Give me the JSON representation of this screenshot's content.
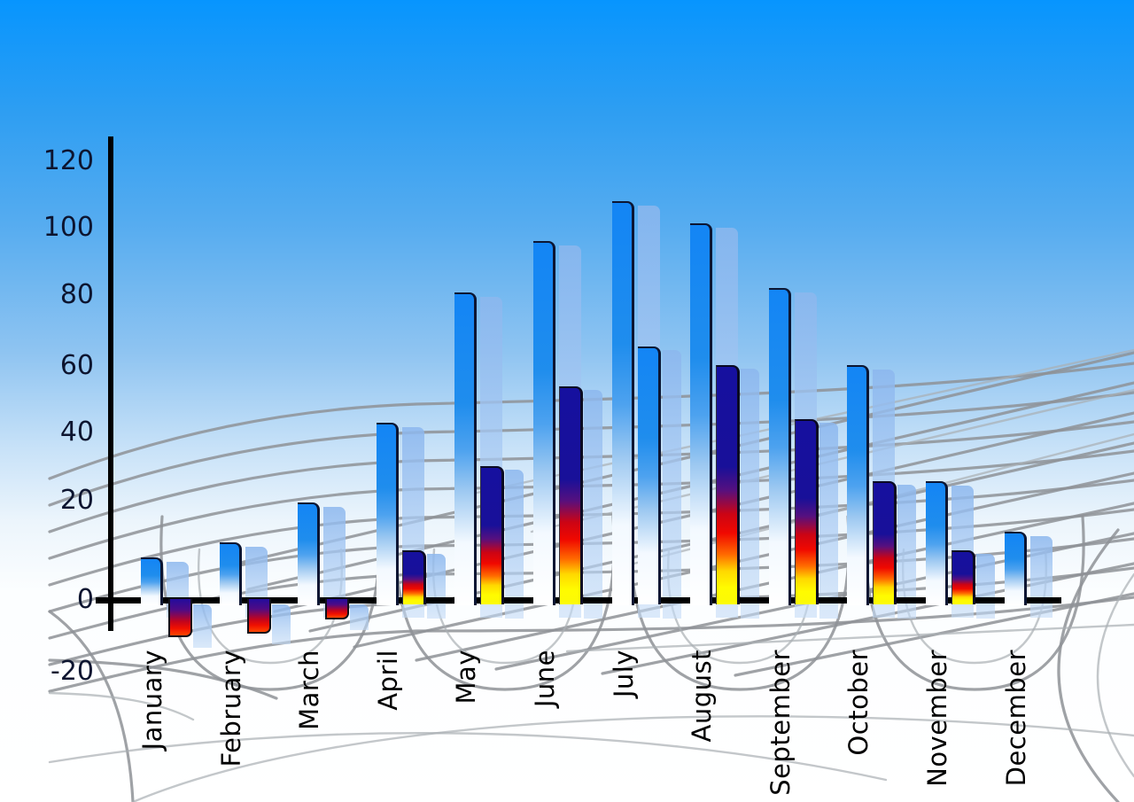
{
  "y_axis": {
    "tick_labels": [
      "120",
      "100",
      "80",
      "60",
      "40",
      "20",
      "0",
      "-20"
    ]
  },
  "chart_data": {
    "type": "bar",
    "title": "",
    "xlabel": "",
    "ylabel": "",
    "categories": [
      "January",
      "February",
      "March",
      "April",
      "May",
      "June",
      "July",
      "August",
      "September",
      "October",
      "November",
      "December"
    ],
    "series": [
      {
        "name": "primary-blue-bars",
        "values": [
          12,
          16,
          27,
          49,
          85,
          99,
          110,
          104,
          86,
          65,
          33,
          19
        ]
      },
      {
        "name": "secondary-bars",
        "values": [
          -10,
          -9,
          -5,
          14,
          37,
          59,
          70,
          65,
          50,
          33,
          14,
          null
        ],
        "bar_styles": [
          "negative",
          "negative",
          "negative",
          "rainbow",
          "rainbow",
          "rainbow",
          "blue",
          "rainbow",
          "rainbow",
          "rainbow",
          "rainbow",
          null
        ]
      }
    ],
    "ylim": [
      -20,
      120
    ],
    "legend_position": "none",
    "grid": "curved gray perspective floor grid",
    "background": "blue sky gradient fading to white"
  },
  "colors": {
    "sky_top": "#0795fe",
    "sky_bottom": "#ffffff",
    "axis": "#000000",
    "tick_text": "#0d1530",
    "month_text": "#000000",
    "grid_line": "#8e9296",
    "bar_blue_top": "#1385f5",
    "bar_blue_bottom": "#ffffff",
    "bar_rainbow_navy": "#16109f",
    "bar_rainbow_red": "#f00800",
    "bar_rainbow_yellow": "#fffb00",
    "ghost_bar": "rgba(165,198,240,0.8)"
  }
}
